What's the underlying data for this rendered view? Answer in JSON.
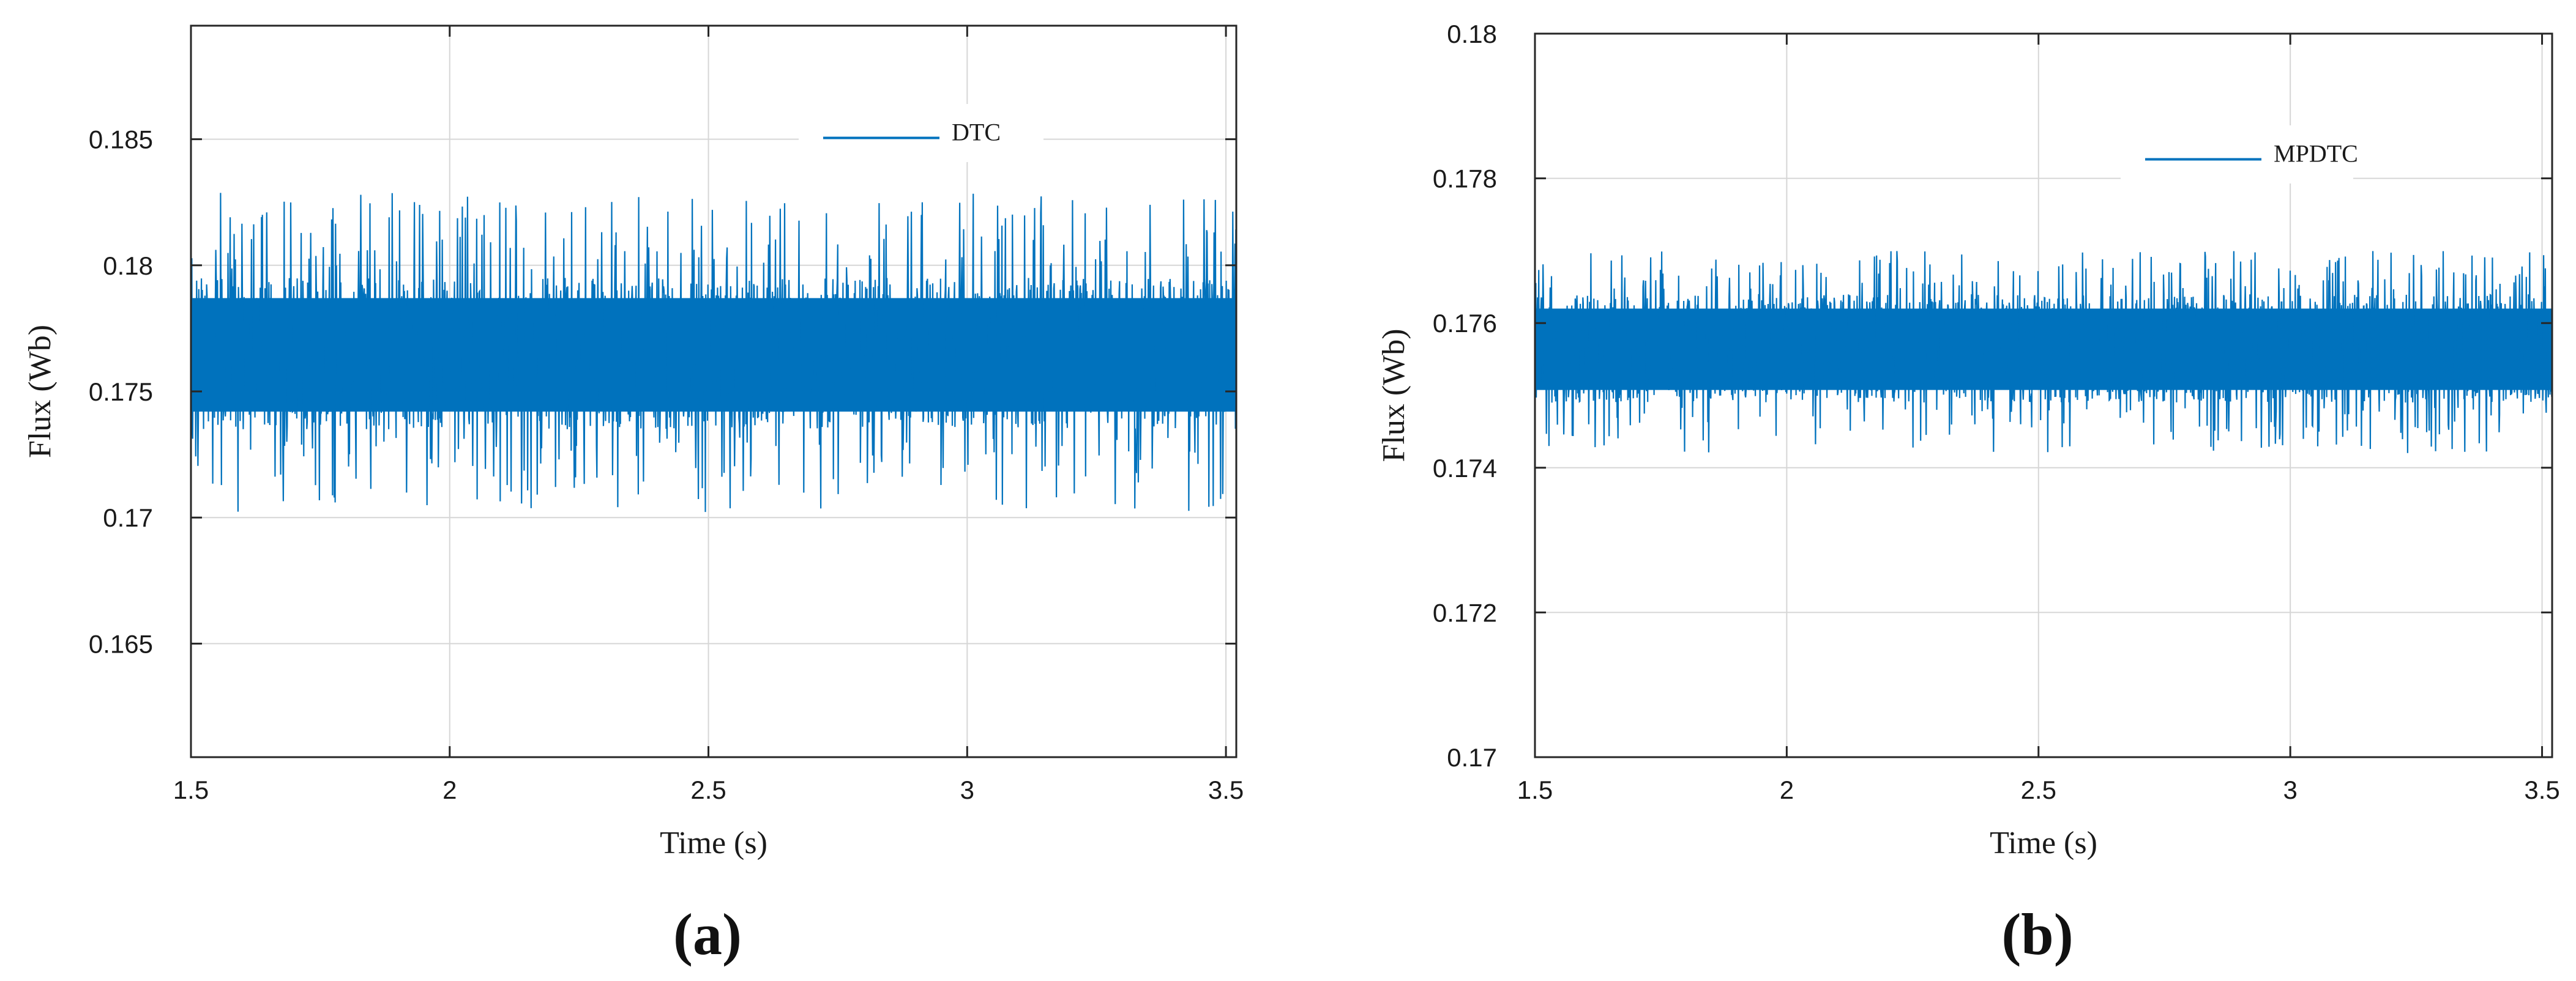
{
  "colors": {
    "series": "#0072BD",
    "grid": "#d6d6d6",
    "axis": "#262626",
    "legend_bg": "#ffffff"
  },
  "chart_data": [
    {
      "type": "line",
      "panel_label": "(a)",
      "xlabel": "Time (s)",
      "ylabel": "Flux (Wb)",
      "xlim": [
        1.5,
        3.52
      ],
      "ylim": [
        0.1605,
        0.1895
      ],
      "xticks": [
        1.5,
        2,
        2.5,
        3,
        3.5
      ],
      "xtick_labels": [
        "1.5",
        "2",
        "2.5",
        "3",
        "3.5"
      ],
      "yticks": [
        0.165,
        0.17,
        0.175,
        0.18,
        0.185
      ],
      "ytick_labels": [
        "0.165",
        "0.17",
        "0.175",
        "0.18",
        "0.185"
      ],
      "grid": true,
      "legend_position": "top-right",
      "series": [
        {
          "name": "DTC",
          "x_start": 1.5,
          "x_end": 3.52,
          "mean": 0.1763,
          "dense_min": 0.1735,
          "dense_max": 0.1795,
          "min": 0.1702,
          "max": 0.1829
        }
      ]
    },
    {
      "type": "line",
      "panel_label": "(b)",
      "xlabel": "Time (s)",
      "ylabel": "Flux (Wb)",
      "xlim": [
        1.5,
        3.52
      ],
      "ylim": [
        0.17,
        0.18
      ],
      "xticks": [
        1.5,
        2,
        2.5,
        3,
        3.5
      ],
      "xtick_labels": [
        "1.5",
        "2",
        "2.5",
        "3",
        "3.5"
      ],
      "yticks": [
        0.17,
        0.172,
        0.174,
        0.176,
        0.178,
        0.18
      ],
      "ytick_labels": [
        "0.17",
        "0.172",
        "0.174",
        "0.176",
        "0.178",
        "0.18"
      ],
      "grid": true,
      "legend_position": "top-right",
      "series": [
        {
          "name": "MPDTC",
          "x_start": 1.5,
          "x_end": 3.52,
          "mean": 0.1756,
          "dense_min": 0.1749,
          "dense_max": 0.1764,
          "min": 0.1742,
          "max": 0.177
        }
      ]
    }
  ]
}
